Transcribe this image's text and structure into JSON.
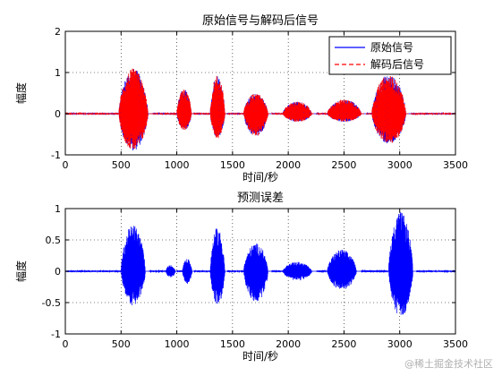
{
  "chart_data": [
    {
      "type": "line",
      "title": "原始信号与解码后信号",
      "xlabel": "时间/秒",
      "ylabel": "幅度",
      "xlim": [
        0,
        3500
      ],
      "ylim": [
        -1,
        2
      ],
      "xticks": [
        "0",
        "500",
        "1000",
        "1500",
        "2000",
        "2500",
        "3000",
        "3500"
      ],
      "yticks": [
        "-1",
        "0",
        "1",
        "2"
      ],
      "grid": true,
      "legend_position": "top-right",
      "series": [
        {
          "name": "原始信号",
          "color": "#0000ff",
          "style": "solid"
        },
        {
          "name": "解码后信号",
          "color": "#ff0000",
          "style": "dashed"
        }
      ],
      "segments": [
        {
          "start": 480,
          "end": 780,
          "amp_max": 1.1,
          "amp_min": -0.9
        },
        {
          "start": 1000,
          "end": 1150,
          "amp_max": 0.6,
          "amp_min": -0.4
        },
        {
          "start": 1300,
          "end": 1450,
          "amp_max": 0.95,
          "amp_min": -0.6
        },
        {
          "start": 1600,
          "end": 1850,
          "amp_max": 0.5,
          "amp_min": -0.55
        },
        {
          "start": 1950,
          "end": 2250,
          "amp_max": 0.3,
          "amp_min": -0.2
        },
        {
          "start": 2350,
          "end": 2700,
          "amp_max": 0.35,
          "amp_min": -0.2
        },
        {
          "start": 2750,
          "end": 3100,
          "amp_max": 0.95,
          "amp_min": -0.75
        }
      ]
    },
    {
      "type": "line",
      "title": "预测误差",
      "xlabel": "时间/秒",
      "ylabel": "幅度",
      "xlim": [
        0,
        3500
      ],
      "ylim": [
        -1,
        1
      ],
      "xticks": [
        "0",
        "500",
        "1000",
        "1500",
        "2000",
        "2500",
        "3000",
        "3500"
      ],
      "yticks": [
        "-1",
        "-0.5",
        "0",
        "0.5",
        "1"
      ],
      "grid": true,
      "series": [
        {
          "name": "",
          "color": "#0000ff",
          "style": "solid"
        }
      ],
      "segments": [
        {
          "start": 500,
          "end": 750,
          "amp_max": 0.75,
          "amp_min": -0.55
        },
        {
          "start": 900,
          "end": 1000,
          "amp_max": 0.1,
          "amp_min": -0.1
        },
        {
          "start": 1050,
          "end": 1150,
          "amp_max": 0.2,
          "amp_min": -0.2
        },
        {
          "start": 1300,
          "end": 1450,
          "amp_max": 0.7,
          "amp_min": -0.55
        },
        {
          "start": 1600,
          "end": 1850,
          "amp_max": 0.45,
          "amp_min": -0.5
        },
        {
          "start": 1950,
          "end": 2250,
          "amp_max": 0.15,
          "amp_min": -0.15
        },
        {
          "start": 2350,
          "end": 2650,
          "amp_max": 0.35,
          "amp_min": -0.3
        },
        {
          "start": 2900,
          "end": 3150,
          "amp_max": 0.95,
          "amp_min": -0.75
        }
      ]
    }
  ],
  "watermark": "@稀土掘金技术社区"
}
